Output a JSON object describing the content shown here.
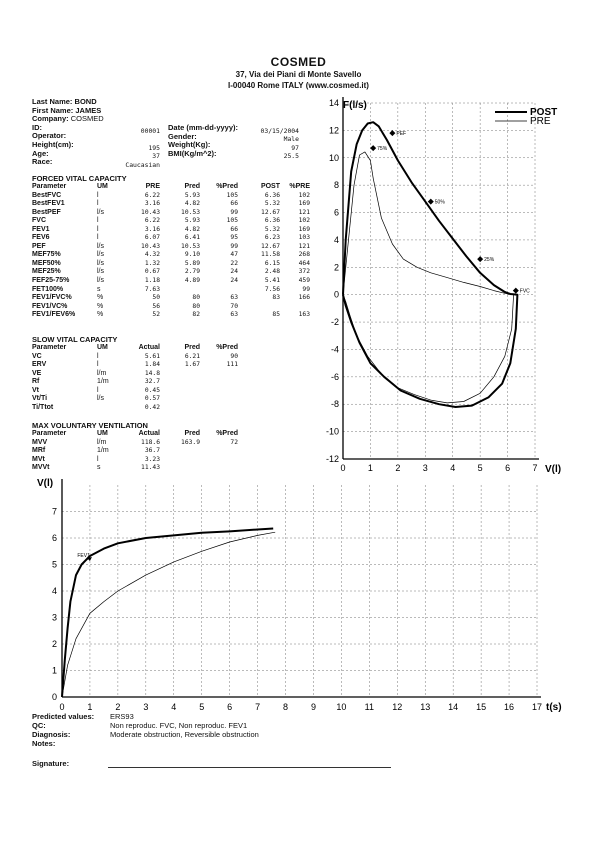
{
  "header": {
    "company": "COSMED",
    "address": "37, Via dei Piani di Monte Savello",
    "city": "I-00040 Rome ITALY (www.cosmed.it)"
  },
  "patient": {
    "last_name_label": "Last Name:",
    "last_name": "BOND",
    "first_name_label": "First Name:",
    "first_name": "JAMES",
    "company_label": "Company:",
    "company": "COSMED",
    "id_label": "ID:",
    "id": "00001",
    "date_label": "Date (mm-dd-yyyy):",
    "date": "03/15/2004",
    "operator_label": "Operator:",
    "gender_label": "Gender:",
    "gender": "Male",
    "height_label": "Height(cm):",
    "height": "195",
    "weight_label": "Weight(Kg):",
    "weight": "97",
    "age_label": "Age:",
    "age": "37",
    "bmi_label": "BMI(Kg/m^2):",
    "bmi": "25.5",
    "race_label": "Race:",
    "race": "Caucasian"
  },
  "fvc": {
    "title": "FORCED VITAL CAPACITY",
    "headers": [
      "Parameter",
      "UM",
      "PRE",
      "Pred",
      "%Pred",
      "POST",
      "%PRE"
    ],
    "rows": [
      [
        "BestFVC",
        "l",
        "6.22",
        "5.93",
        "105",
        "6.36",
        "102"
      ],
      [
        "BestFEV1",
        "l",
        "3.16",
        "4.82",
        "66",
        "5.32",
        "169"
      ],
      [
        "BestPEF",
        "l/s",
        "10.43",
        "10.53",
        "99",
        "12.67",
        "121"
      ],
      [
        "FVC",
        "l",
        "6.22",
        "5.93",
        "105",
        "6.36",
        "102"
      ],
      [
        "FEV1",
        "l",
        "3.16",
        "4.82",
        "66",
        "5.32",
        "169"
      ],
      [
        "FEV6",
        "l",
        "6.07",
        "6.41",
        "95",
        "6.23",
        "103"
      ],
      [
        "PEF",
        "l/s",
        "10.43",
        "10.53",
        "99",
        "12.67",
        "121"
      ],
      [
        "MEF75%",
        "l/s",
        "4.32",
        "9.10",
        "47",
        "11.58",
        "268"
      ],
      [
        "MEF50%",
        "l/s",
        "1.32",
        "5.89",
        "22",
        "6.15",
        "464"
      ],
      [
        "MEF25%",
        "l/s",
        "0.67",
        "2.79",
        "24",
        "2.48",
        "372"
      ],
      [
        "FEF25-75%",
        "l/s",
        "1.18",
        "4.89",
        "24",
        "5.41",
        "459"
      ],
      [
        "FET100%",
        "s",
        "7.63",
        "",
        "",
        "7.56",
        "99"
      ],
      [
        "FEV1/FVC%",
        "%",
        "50",
        "80",
        "63",
        "83",
        "166"
      ],
      [
        "FEV1/VC%",
        "%",
        "56",
        "80",
        "70",
        "",
        ""
      ],
      [
        "FEV1/FEV6%",
        "%",
        "52",
        "82",
        "63",
        "85",
        "163"
      ]
    ]
  },
  "svc": {
    "title": "SLOW VITAL CAPACITY",
    "headers": [
      "Parameter",
      "UM",
      "Actual",
      "Pred",
      "%Pred"
    ],
    "rows": [
      [
        "VC",
        "l",
        "5.61",
        "6.21",
        "90"
      ],
      [
        "ERV",
        "l",
        "1.84",
        "1.67",
        "111"
      ],
      [
        "VE",
        "l/m",
        "14.8",
        "",
        ""
      ],
      [
        "Rf",
        "1/m",
        "32.7",
        "",
        ""
      ],
      [
        "Vt",
        "l",
        "0.45",
        "",
        ""
      ],
      [
        "Vt/Ti",
        "l/s",
        "0.57",
        "",
        ""
      ],
      [
        "Ti/Ttot",
        "",
        "0.42",
        "",
        ""
      ]
    ]
  },
  "mvv": {
    "title": "MAX VOLUNTARY VENTILATION",
    "headers": [
      "Parameter",
      "UM",
      "Actual",
      "Pred",
      "%Pred"
    ],
    "rows": [
      [
        "MVV",
        "l/m",
        "118.6",
        "163.9",
        "72"
      ],
      [
        "MRf",
        "1/m",
        "36.7",
        "",
        ""
      ],
      [
        "MVt",
        "l",
        "3.23",
        "",
        ""
      ],
      [
        "MVVt",
        "s",
        "11.43",
        "",
        ""
      ]
    ]
  },
  "chart_data": [
    {
      "type": "line",
      "ylabel": "F(l/s)",
      "xlabel": "V(l)",
      "xlim": [
        0,
        7
      ],
      "ylim": [
        -12,
        14
      ],
      "x_ticks": [
        0,
        1,
        2,
        3,
        4,
        5,
        6,
        7
      ],
      "y_ticks": [
        -12,
        -10,
        -8,
        -6,
        -4,
        -2,
        0,
        2,
        4,
        6,
        8,
        10,
        12,
        14
      ],
      "grid": true,
      "legend": "top-right",
      "series": [
        {
          "name": "POST",
          "x": [
            0,
            0.1,
            0.3,
            0.5,
            0.7,
            0.9,
            1.1,
            1.3,
            1.6,
            2.0,
            2.5,
            3.0,
            3.5,
            4.0,
            4.5,
            5.0,
            5.5,
            5.9,
            6.1,
            6.25,
            6.36,
            6.3,
            6.1,
            5.8,
            5.3,
            4.7,
            4.1,
            3.5,
            2.8,
            2.1,
            1.5,
            1.0,
            0.6,
            0.3,
            0.1,
            0
          ],
          "y": [
            0,
            4,
            9,
            11,
            12,
            12.5,
            12.6,
            12.3,
            11.3,
            9.8,
            8.2,
            6.8,
            5.4,
            4.1,
            2.8,
            1.6,
            0.7,
            0.2,
            0.05,
            0.02,
            0,
            -2.5,
            -5,
            -6.5,
            -7.5,
            -8.1,
            -8.2,
            -8,
            -7.6,
            -7,
            -6,
            -5,
            -3.5,
            -2,
            -0.8,
            0
          ]
        },
        {
          "name": "PRE",
          "x": [
            0,
            0.2,
            0.4,
            0.6,
            0.8,
            1.0,
            1.1,
            1.4,
            1.8,
            2.2,
            2.7,
            3.2,
            3.8,
            4.4,
            5.0,
            5.5,
            5.9,
            6.1,
            6.22,
            6.15,
            5.9,
            5.5,
            5.0,
            4.4,
            3.8,
            3.2,
            2.6,
            2.0,
            1.4,
            0.9,
            0.5,
            0.25,
            0.1,
            0
          ],
          "y": [
            0,
            4,
            8,
            10.2,
            10.43,
            9.8,
            8.5,
            5.6,
            3.7,
            2.6,
            2.0,
            1.6,
            1.25,
            0.9,
            0.6,
            0.3,
            0.1,
            0.03,
            0,
            -2.5,
            -4.5,
            -6,
            -7.2,
            -7.8,
            -7.9,
            -7.7,
            -7.3,
            -6.8,
            -5.8,
            -4.5,
            -3,
            -1.5,
            -0.5,
            0
          ]
        }
      ],
      "annotations": [
        "PEF",
        "75%",
        "50%",
        "25%",
        "FVC"
      ],
      "legend_entries": [
        "POST",
        "PRE"
      ]
    },
    {
      "type": "line",
      "ylabel": "V(l)",
      "xlabel": "t(s)",
      "xlim": [
        0,
        17
      ],
      "ylim": [
        0,
        8
      ],
      "x_ticks": [
        0,
        1,
        2,
        3,
        4,
        5,
        6,
        7,
        8,
        9,
        10,
        11,
        12,
        13,
        14,
        15,
        16,
        17
      ],
      "y_ticks": [
        0,
        1,
        2,
        3,
        4,
        5,
        6,
        7
      ],
      "grid": true,
      "series": [
        {
          "name": "POST",
          "x": [
            0,
            0.1,
            0.2,
            0.3,
            0.5,
            0.7,
            1.0,
            1.5,
            2.0,
            3.0,
            4.0,
            5.0,
            6.0,
            7.0,
            7.56
          ],
          "y": [
            0,
            1.4,
            2.6,
            3.6,
            4.6,
            5.0,
            5.32,
            5.6,
            5.8,
            6.0,
            6.1,
            6.2,
            6.25,
            6.32,
            6.36
          ]
        },
        {
          "name": "PRE",
          "x": [
            0,
            0.2,
            0.5,
            1.0,
            1.5,
            2.0,
            3.0,
            4.0,
            5.0,
            6.0,
            7.0,
            7.63
          ],
          "y": [
            0,
            1.2,
            2.2,
            3.16,
            3.6,
            4.0,
            4.6,
            5.1,
            5.5,
            5.85,
            6.1,
            6.22
          ]
        }
      ],
      "annotations": [
        "FEV1"
      ]
    }
  ],
  "footer": {
    "predicted_label": "Predicted values:",
    "predicted": "ERS93",
    "qc_label": "QC:",
    "qc": "Non reproduc. FVC, Non reproduc. FEV1",
    "diagnosis_label": "Diagnosis:",
    "diagnosis": "Moderate obstruction, Reversible obstruction",
    "notes_label": "Notes:",
    "signature_label": "Signature:"
  }
}
